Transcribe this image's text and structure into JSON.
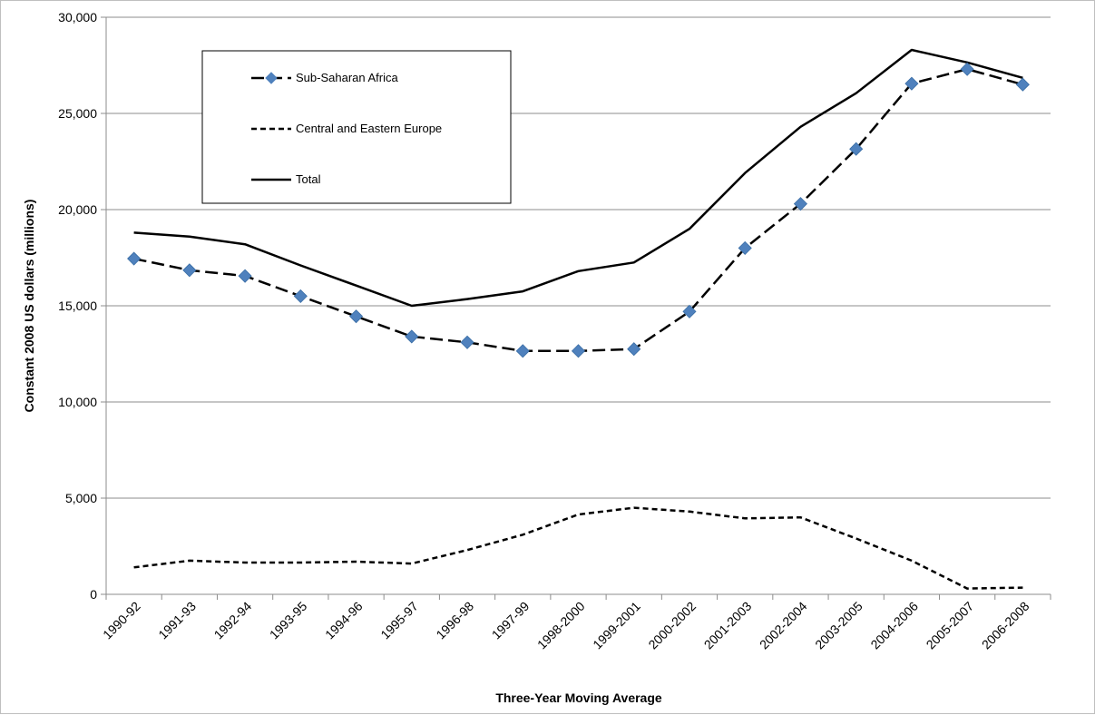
{
  "chart_data": {
    "type": "line",
    "title": "",
    "xlabel": "Three-Year Moving Average",
    "ylabel": "Constant 2008 US dollars (millions)",
    "ylim": [
      0,
      30000
    ],
    "yticks": [
      0,
      5000,
      10000,
      15000,
      20000,
      25000,
      30000
    ],
    "ytick_labels": [
      "0",
      "5,000",
      "10,000",
      "15,000",
      "20,000",
      "25,000",
      "30,000"
    ],
    "grid": "horizontal",
    "legend_position": "top-left",
    "categories": [
      "1990-92",
      "1991-93",
      "1992-94",
      "1993-95",
      "1994-96",
      "1995-97",
      "1996-98",
      "1997-99",
      "1998-2000",
      "1999-2001",
      "2000-2002",
      "2001-2003",
      "2002-2004",
      "2003-2005",
      "2004-2006",
      "2005-2007",
      "2006-2008"
    ],
    "series": [
      {
        "name": "Sub-Saharan Africa",
        "style": "long-dash with diamond markers",
        "line_color": "#000000",
        "marker_color": "#4f81bd",
        "values": [
          17450,
          16850,
          16550,
          15500,
          14450,
          13400,
          13100,
          12650,
          12650,
          12750,
          14700,
          18000,
          20300,
          23150,
          26550,
          27300,
          26500
        ]
      },
      {
        "name": "Central and Eastern Europe",
        "style": "short-dash",
        "line_color": "#000000",
        "values": [
          1400,
          1750,
          1650,
          1650,
          1700,
          1600,
          2300,
          3100,
          4150,
          4500,
          4300,
          3950,
          4000,
          2900,
          1750,
          300,
          350
        ]
      },
      {
        "name": "Total",
        "style": "solid",
        "line_color": "#000000",
        "values": [
          18800,
          18600,
          18200,
          17100,
          16050,
          15000,
          15350,
          15750,
          16800,
          17250,
          19000,
          21900,
          24300,
          26050,
          28300,
          27650,
          26850
        ]
      }
    ]
  }
}
